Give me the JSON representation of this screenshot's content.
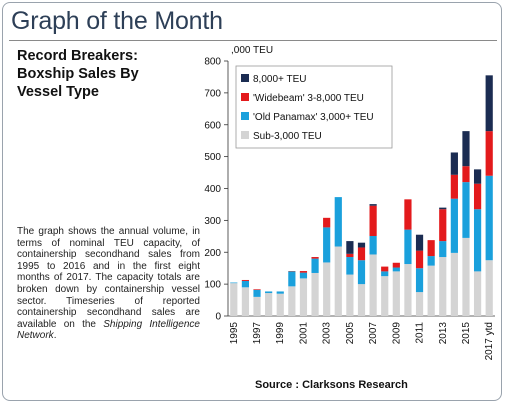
{
  "page": {
    "title": "Graph of the Month",
    "subtitle": "Record Breakers: Boxship Sales By Vessel Type",
    "description": {
      "part1": "The graph shows the annual volume, in terms of nominal TEU capacity, of containership secondhand sales from 1995 to 2016 and in the first eight months of 2017. The capacity totals are broken down by containership vessel sector. Timeseries of reported containership secondhand sales are available on the ",
      "emphasis": "Shipping Intelligence Network",
      "part2": "."
    },
    "source": "Source : Clarksons Research"
  },
  "chart_data": {
    "type": "bar",
    "stacked": true,
    "unit_label": ",000 TEU",
    "ylim": [
      0,
      800
    ],
    "yticks": [
      0,
      100,
      200,
      300,
      400,
      500,
      600,
      700,
      800
    ],
    "grid": false,
    "legend_position": "top-left",
    "categories": [
      "1995",
      "1996",
      "1997",
      "1998",
      "1999",
      "2000",
      "2001",
      "2002",
      "2003",
      "2004",
      "2005",
      "2006",
      "2007",
      "2008",
      "2009",
      "2010",
      "2011",
      "2012",
      "2013",
      "2014",
      "2015",
      "2016",
      "2017 ytd"
    ],
    "xtick_labels": [
      "1995",
      "",
      "1997",
      "",
      "1999",
      "",
      "2001",
      "",
      "2003",
      "",
      "2005",
      "",
      "2007",
      "",
      "2009",
      "",
      "2011",
      "",
      "2013",
      "",
      "2015",
      "",
      "2017 ytd"
    ],
    "series": [
      {
        "name": "Sub-3,000 TEU",
        "color": "#d4d4d4",
        "values": [
          103,
          90,
          60,
          72,
          70,
          93,
          118,
          135,
          168,
          218,
          130,
          100,
          193,
          125,
          140,
          163,
          75,
          158,
          185,
          198,
          245,
          140,
          175
        ]
      },
      {
        "name": "'Old Panamax' 3,000+ TEU",
        "color": "#1aa0dc",
        "values": [
          2,
          20,
          22,
          5,
          7,
          45,
          18,
          45,
          110,
          155,
          55,
          75,
          58,
          15,
          12,
          108,
          75,
          30,
          50,
          170,
          175,
          195,
          265
        ]
      },
      {
        "name": "'Widebeam' 3-8,000 TEU",
        "color": "#e31a1c",
        "values": [
          0,
          3,
          2,
          0,
          0,
          0,
          5,
          5,
          30,
          0,
          10,
          40,
          95,
          15,
          15,
          95,
          55,
          50,
          100,
          75,
          50,
          80,
          140
        ]
      },
      {
        "name": "8,000+ TEU",
        "color": "#1b2c52",
        "values": [
          0,
          0,
          0,
          0,
          0,
          2,
          0,
          0,
          0,
          0,
          40,
          15,
          5,
          0,
          0,
          0,
          50,
          0,
          5,
          70,
          110,
          45,
          175
        ]
      }
    ]
  }
}
